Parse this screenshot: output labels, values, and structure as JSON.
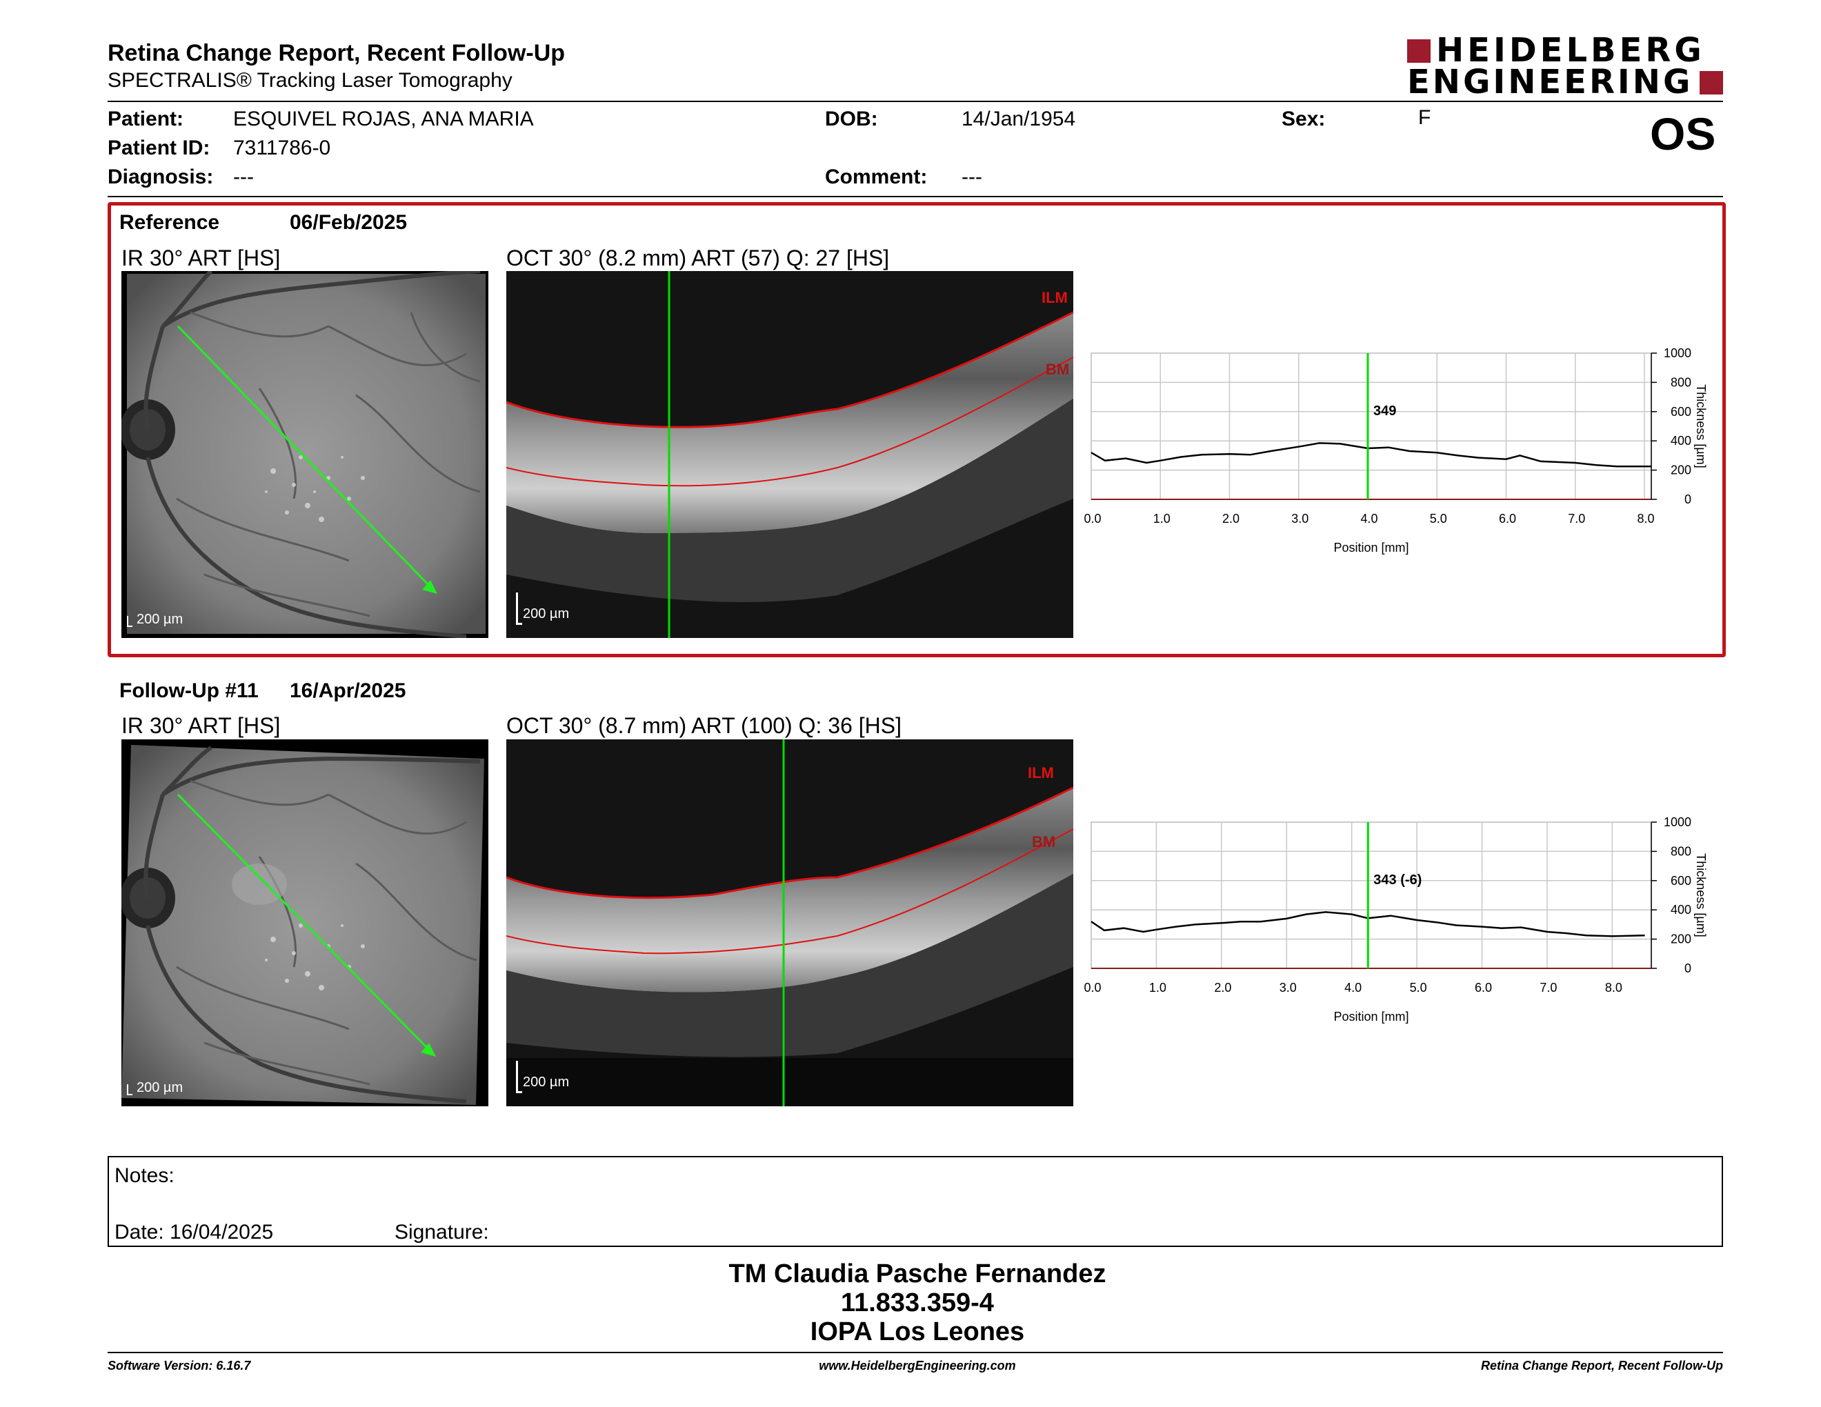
{
  "header": {
    "title": "Retina Change Report, Recent Follow-Up",
    "subtitle": "SPECTRALIS® Tracking Laser Tomography",
    "logo_line1": "HEIDELBERG",
    "logo_line2": "ENGINEERING",
    "eye": "OS"
  },
  "patient": {
    "patient_label": "Patient:",
    "patient_value": "ESQUIVEL ROJAS, ANA MARIA",
    "id_label": "Patient ID:",
    "id_value": "7311786-0",
    "diagnosis_label": "Diagnosis:",
    "diagnosis_value": "---",
    "dob_label": "DOB:",
    "dob_value": "14/Jan/1954",
    "comment_label": "Comment:",
    "comment_value": "---",
    "sex_label": "Sex:",
    "sex_value": "F"
  },
  "reference": {
    "label": "Reference",
    "date": "06/Feb/2025",
    "ir_title": "IR 30° ART [HS]",
    "oct_title": "OCT 30° (8.2 mm) ART (57) Q: 27 [HS]",
    "ir_scale": "200 µm",
    "oct_scale": "200 µm",
    "ilm": "ILM",
    "bm": "BM",
    "cursor_value": "349"
  },
  "followup": {
    "label": "Follow-Up #11",
    "date": "16/Apr/2025",
    "ir_title": "IR 30° ART [HS]",
    "oct_title": "OCT 30° (8.7 mm) ART (100) Q: 36 [HS]",
    "ir_scale": "200 µm",
    "oct_scale": "200 µm",
    "ilm": "ILM",
    "bm": "BM",
    "cursor_value": "343 (-6)"
  },
  "chart_data": [
    {
      "type": "line",
      "xlabel": "Position [mm]",
      "ylabel": "Thickness [µm]",
      "xlim": [
        0,
        8.1
      ],
      "ylim": [
        0,
        1000
      ],
      "xticks": [
        "0.0",
        "1.0",
        "2.0",
        "3.0",
        "4.0",
        "5.0",
        "6.0",
        "7.0",
        "8.0"
      ],
      "yticks": [
        "0",
        "200",
        "400",
        "600",
        "800",
        "1000"
      ],
      "cursor_x": 4.0,
      "cursor_label": "349",
      "x": [
        0.0,
        0.2,
        0.5,
        0.8,
        1.0,
        1.3,
        1.6,
        2.0,
        2.3,
        2.6,
        3.0,
        3.3,
        3.6,
        4.0,
        4.3,
        4.6,
        5.0,
        5.3,
        5.6,
        6.0,
        6.2,
        6.5,
        7.0,
        7.3,
        7.6,
        8.0,
        8.1
      ],
      "y": [
        320,
        265,
        280,
        250,
        265,
        290,
        305,
        310,
        305,
        330,
        360,
        385,
        380,
        349,
        355,
        330,
        320,
        300,
        285,
        275,
        300,
        260,
        250,
        235,
        225,
        225,
        225
      ]
    },
    {
      "type": "line",
      "xlabel": "Position [mm]",
      "ylabel": "Thickness [µm]",
      "xlim": [
        0,
        8.6
      ],
      "ylim": [
        0,
        1000
      ],
      "xticks": [
        "0.0",
        "1.0",
        "2.0",
        "3.0",
        "4.0",
        "5.0",
        "6.0",
        "7.0",
        "8.0"
      ],
      "yticks": [
        "0",
        "200",
        "400",
        "600",
        "800",
        "1000"
      ],
      "cursor_x": 4.25,
      "cursor_label": "343 (-6)",
      "x": [
        0.0,
        0.2,
        0.5,
        0.8,
        1.0,
        1.3,
        1.6,
        2.0,
        2.3,
        2.6,
        3.0,
        3.3,
        3.6,
        4.0,
        4.25,
        4.6,
        5.0,
        5.3,
        5.6,
        6.0,
        6.3,
        6.6,
        7.0,
        7.3,
        7.6,
        8.0,
        8.5
      ],
      "y": [
        320,
        260,
        275,
        250,
        265,
        285,
        300,
        310,
        320,
        320,
        340,
        370,
        385,
        370,
        343,
        360,
        330,
        315,
        295,
        285,
        275,
        280,
        250,
        240,
        225,
        220,
        225
      ]
    }
  ],
  "notes": {
    "notes_label": "Notes:",
    "date_label": "Date: 16/04/2025",
    "signature_label": "Signature:"
  },
  "signature_block": {
    "name": "TM Claudia Pasche Fernandez",
    "id": "11.833.359-4",
    "institution": "IOPA Los Leones"
  },
  "footer": {
    "software": "Software Version: 6.16.7",
    "website": "www.HeidelbergEngineering.com",
    "report_name": "Retina Change Report, Recent Follow-Up"
  },
  "colors": {
    "frame_red": "#c0131a",
    "logo_red": "#9c1b2c",
    "cursor_green": "#00dd00",
    "layer_red": "#e01010"
  }
}
